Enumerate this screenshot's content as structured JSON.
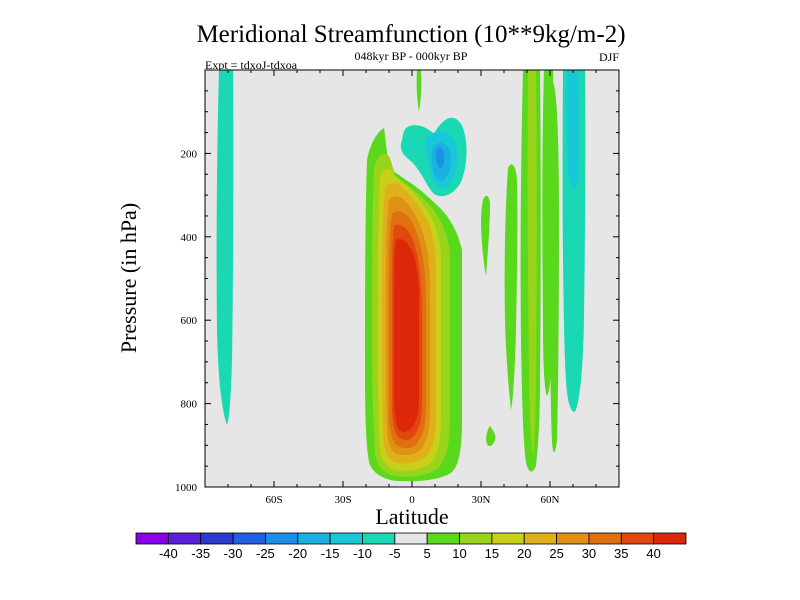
{
  "chart_data": {
    "type": "contour",
    "title": "Meridional Streamfunction (10**9kg/m-2)",
    "subtitle": "048kyr BP - 000kyr BP",
    "left_label": "Expt = tdxoJ-tdxoa",
    "right_label": "DJF",
    "xlabel": "Latitude",
    "ylabel": "Pressure (in hPa)",
    "xlim": [
      -90,
      90
    ],
    "ylim": [
      1000,
      0
    ],
    "x_ticks": [
      {
        "value": -60,
        "label": "60S"
      },
      {
        "value": -30,
        "label": "30S"
      },
      {
        "value": 0,
        "label": "0"
      },
      {
        "value": 30,
        "label": "30N"
      },
      {
        "value": 60,
        "label": "60N"
      }
    ],
    "y_ticks": [
      {
        "value": 200,
        "label": "200"
      },
      {
        "value": 400,
        "label": "400"
      },
      {
        "value": 600,
        "label": "600"
      },
      {
        "value": 800,
        "label": "800"
      },
      {
        "value": 1000,
        "label": "1000"
      }
    ],
    "colorbar": {
      "labels": [
        "-40",
        "-35",
        "-30",
        "-25",
        "-20",
        "-15",
        "-10",
        "-5",
        "5",
        "10",
        "15",
        "20",
        "25",
        "30",
        "35",
        "40"
      ],
      "colors": [
        "#8a00e6",
        "#5a1fd9",
        "#2c3ad0",
        "#2060e0",
        "#1c8fe6",
        "#1ab0e0",
        "#18c8d8",
        "#1ad8b4",
        "#e6e6e6",
        "#5ad81e",
        "#98d41a",
        "#c8d01a",
        "#e0b01a",
        "#e09014",
        "#e0700f",
        "#e04810",
        "#dc2808"
      ]
    },
    "background_color": "#e6e6e6",
    "features": [
      {
        "name": "tropical-positive-cell",
        "center_lat": -4,
        "center_p": 600,
        "peak": 40
      },
      {
        "name": "upper-negative-cell",
        "center_lat": 9,
        "center_p": 200,
        "peak": -20
      },
      {
        "name": "high-lat-south-band",
        "center_lat": -77,
        "center_p": 450,
        "peak": -5
      },
      {
        "name": "mid-lat-north-bands",
        "center_lat": 52,
        "center_p": 500,
        "peak": 10
      }
    ]
  }
}
